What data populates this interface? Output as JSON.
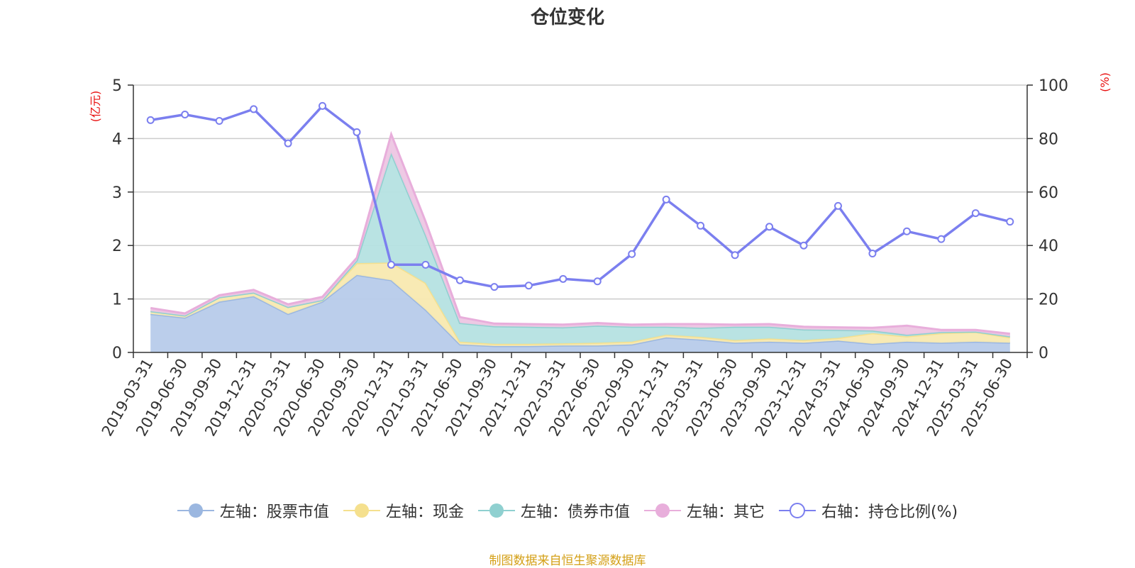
{
  "chart_data": {
    "type": "area",
    "title": "仓位变化",
    "left_axis_unit": "(亿元)",
    "right_axis_unit": "(%)",
    "left_ylim": [
      0,
      5
    ],
    "left_yticks": [
      "0",
      "1",
      "2",
      "3",
      "4",
      "5"
    ],
    "right_ylim": [
      0,
      100
    ],
    "right_yticks": [
      "0",
      "20",
      "40",
      "60",
      "80",
      "100"
    ],
    "grid": true,
    "legend_position": "bottom",
    "categories": [
      "2019-03-31",
      "2019-06-30",
      "2019-09-30",
      "2019-12-31",
      "2020-03-31",
      "2020-06-30",
      "2020-09-30",
      "2020-12-31",
      "2021-03-31",
      "2021-06-30",
      "2021-09-30",
      "2021-12-31",
      "2022-03-31",
      "2022-06-30",
      "2022-09-30",
      "2022-12-31",
      "2023-03-31",
      "2023-06-30",
      "2023-09-30",
      "2023-12-31",
      "2024-03-31",
      "2024-06-30",
      "2024-09-30",
      "2024-12-31",
      "2025-03-31",
      "2025-06-30"
    ],
    "stacked_series": [
      {
        "name": "左轴：股票市值",
        "color": "#9bb7e0",
        "fill": "#b7cbea",
        "values": [
          0.72,
          0.65,
          0.95,
          1.05,
          0.72,
          0.95,
          1.45,
          1.35,
          0.8,
          0.15,
          0.12,
          0.12,
          0.13,
          0.13,
          0.15,
          0.28,
          0.24,
          0.18,
          0.2,
          0.18,
          0.22,
          0.16,
          0.2,
          0.18,
          0.2,
          0.18
        ]
      },
      {
        "name": "左轴：现金",
        "color": "#f5e08e",
        "fill": "#f8e9b0",
        "values": [
          0.05,
          0.04,
          0.08,
          0.07,
          0.13,
          0.03,
          0.22,
          0.33,
          0.5,
          0.05,
          0.04,
          0.04,
          0.04,
          0.05,
          0.05,
          0.05,
          0.05,
          0.05,
          0.06,
          0.05,
          0.05,
          0.2,
          0.1,
          0.18,
          0.18,
          0.1
        ]
      },
      {
        "name": "左轴：债券市值",
        "color": "#8fd0d0",
        "fill": "#b5e2e2",
        "values": [
          0,
          0,
          0,
          0,
          0,
          0,
          0.05,
          2.05,
          0.9,
          0.35,
          0.33,
          0.32,
          0.3,
          0.32,
          0.28,
          0.15,
          0.17,
          0.25,
          0.22,
          0.2,
          0.15,
          0.05,
          0.03,
          0.02,
          0.01,
          0.02
        ]
      },
      {
        "name": "左轴：其它",
        "color": "#e8aedb",
        "fill": "#edc6e3",
        "values": [
          0.06,
          0.04,
          0.04,
          0.05,
          0.05,
          0.06,
          0.05,
          0.35,
          0.25,
          0.11,
          0.05,
          0.05,
          0.05,
          0.05,
          0.04,
          0.05,
          0.07,
          0.04,
          0.05,
          0.05,
          0.05,
          0.05,
          0.17,
          0.04,
          0.03,
          0.05
        ]
      }
    ],
    "line_series": {
      "name": "右轴：持仓比例(%)",
      "color": "#7b7fef",
      "values": [
        86.9,
        89.0,
        86.6,
        91.0,
        78.2,
        92.2,
        82.4,
        32.8,
        32.8,
        27.0,
        24.5,
        25.0,
        27.5,
        26.6,
        36.8,
        57.2,
        47.4,
        36.4,
        47.0,
        40.0,
        54.8,
        37.0,
        45.3,
        42.4,
        52.1,
        48.9
      ]
    },
    "footer": "制图数据来自恒生聚源数据库",
    "footer_color": "#d4a017",
    "axis_label_color": "#e81010"
  }
}
